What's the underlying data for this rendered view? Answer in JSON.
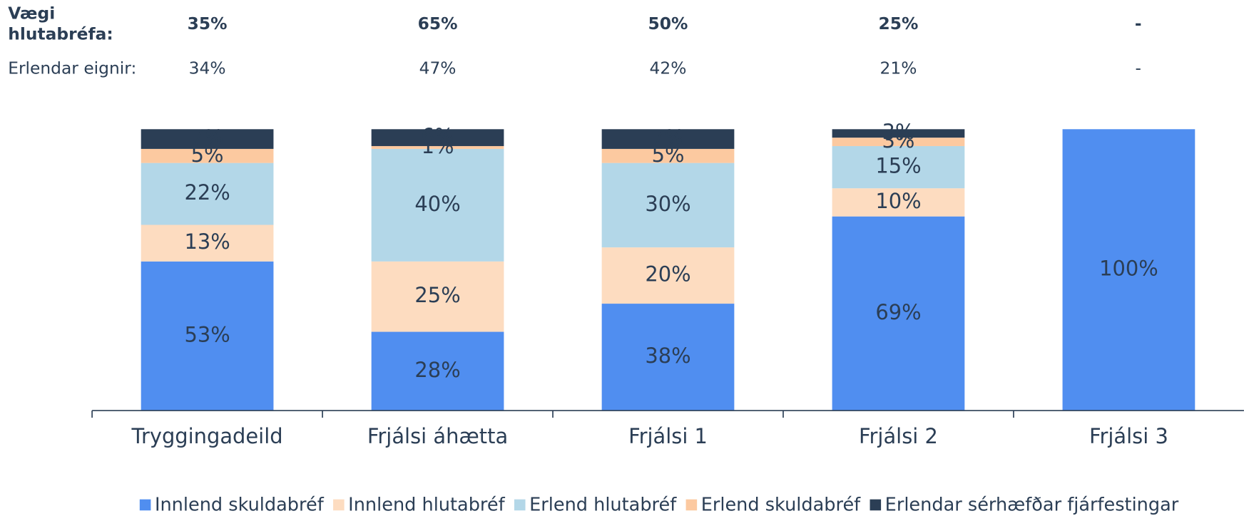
{
  "chart_data": {
    "type": "stacked_bar",
    "header_rows": [
      {
        "label": "Vægi hlutabréfa:",
        "values": [
          "35%",
          "65%",
          "50%",
          "25%",
          "-"
        ],
        "bold": true
      },
      {
        "label": "Erlendar eignir:",
        "values": [
          "34%",
          "47%",
          "42%",
          "21%",
          "-"
        ],
        "bold": false
      }
    ],
    "categories": [
      "Tryggingadeild",
      "Frjálsi áhætta",
      "Frjálsi 1",
      "Frjálsi 2",
      "Frjálsi 3"
    ],
    "series": [
      {
        "name": "Innlend skuldabréf",
        "color": "#508ef0",
        "values": [
          53,
          28,
          38,
          69,
          100
        ],
        "value_labels": [
          "53%",
          "28%",
          "38%",
          "69%",
          "100%"
        ]
      },
      {
        "name": "Innlend hlutabréf",
        "color": "#fddcc0",
        "values": [
          13,
          25,
          20,
          10,
          null
        ],
        "value_labels": [
          "13%",
          "25%",
          "20%",
          "10%",
          null
        ]
      },
      {
        "name": "Erlend hlutabréf",
        "color": "#b3d7e8",
        "values": [
          22,
          40,
          30,
          15,
          null
        ],
        "value_labels": [
          "22%",
          "40%",
          "30%",
          "15%",
          null
        ]
      },
      {
        "name": "Erlend skuldabréf",
        "color": "#fcc9a0",
        "values": [
          5,
          1,
          5,
          3,
          null
        ],
        "value_labels": [
          "5%",
          "1%",
          "5%",
          "3%",
          null
        ]
      },
      {
        "name": "Erlendar sérhæfðar fjárfestingar",
        "color": "#2b3e55",
        "values": [
          7,
          6,
          7,
          3,
          null
        ],
        "value_labels": [
          "7%",
          "6%",
          "7%",
          "3%",
          null
        ]
      }
    ],
    "ylim": [
      0,
      100
    ],
    "legend": "bottom"
  }
}
